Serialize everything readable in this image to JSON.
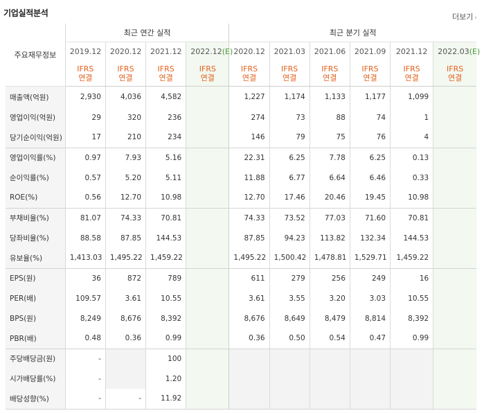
{
  "section_title": "기업실적분석",
  "more_link": "더보기",
  "table": {
    "corner_label": "주요재무정보",
    "group_annual": "최근 연간 실적",
    "group_quarter": "최근 분기 실적",
    "annual_periods": [
      "2019.12",
      "2020.12",
      "2021.12",
      "2022.12(E)"
    ],
    "quarter_periods": [
      "2020.12",
      "2021.03",
      "2021.06",
      "2021.09",
      "2021.12",
      "2022.03(E)"
    ],
    "basis_line1": "IFRS",
    "basis_line2": "연결",
    "rows": [
      {
        "label": "매출액(억원)",
        "values": [
          "2,930",
          "4,036",
          "4,582",
          "",
          "1,227",
          "1,174",
          "1,133",
          "1,177",
          "1,099",
          ""
        ]
      },
      {
        "label": "영업이익(억원)",
        "values": [
          "29",
          "320",
          "236",
          "",
          "274",
          "73",
          "88",
          "74",
          "1",
          ""
        ]
      },
      {
        "label": "당기순이익(억원)",
        "values": [
          "17",
          "210",
          "234",
          "",
          "146",
          "79",
          "75",
          "76",
          "4",
          ""
        ]
      },
      {
        "label": "영업이익률(%)",
        "values": [
          "0.97",
          "7.93",
          "5.16",
          "",
          "22.31",
          "6.25",
          "7.78",
          "6.25",
          "0.13",
          ""
        ]
      },
      {
        "label": "순이익률(%)",
        "values": [
          "0.57",
          "5.20",
          "5.11",
          "",
          "11.88",
          "6.77",
          "6.64",
          "6.46",
          "0.33",
          ""
        ]
      },
      {
        "label": "ROE(%)",
        "values": [
          "0.56",
          "12.70",
          "10.98",
          "",
          "12.70",
          "17.46",
          "20.46",
          "19.45",
          "10.98",
          ""
        ]
      },
      {
        "label": "부채비율(%)",
        "values": [
          "81.07",
          "74.33",
          "70.81",
          "",
          "74.33",
          "73.52",
          "77.03",
          "71.60",
          "70.81",
          ""
        ]
      },
      {
        "label": "당좌비율(%)",
        "values": [
          "88.58",
          "87.85",
          "144.53",
          "",
          "87.85",
          "94.23",
          "113.82",
          "132.34",
          "144.53",
          ""
        ]
      },
      {
        "label": "유보율(%)",
        "values": [
          "1,413.03",
          "1,495.22",
          "1,459.22",
          "",
          "1,495.22",
          "1,500.42",
          "1,478.81",
          "1,529.71",
          "1,459.22",
          ""
        ]
      },
      {
        "label": "EPS(원)",
        "values": [
          "36",
          "872",
          "789",
          "",
          "611",
          "279",
          "256",
          "249",
          "16",
          ""
        ]
      },
      {
        "label": "PER(배)",
        "values": [
          "109.57",
          "3.61",
          "10.55",
          "",
          "3.61",
          "3.55",
          "3.20",
          "3.03",
          "10.55",
          ""
        ]
      },
      {
        "label": "BPS(원)",
        "values": [
          "8,249",
          "8,676",
          "8,392",
          "",
          "8,676",
          "8,649",
          "8,479",
          "8,814",
          "8,392",
          ""
        ]
      },
      {
        "label": "PBR(배)",
        "values": [
          "0.48",
          "0.36",
          "0.99",
          "",
          "0.36",
          "0.50",
          "0.54",
          "0.47",
          "0.99",
          ""
        ]
      },
      {
        "label": "주당배당금(원)",
        "values": [
          "-",
          "",
          "100",
          "",
          "",
          "",
          "",
          "",
          "",
          ""
        ]
      },
      {
        "label": "시가배당률(%)",
        "values": [
          "-",
          "",
          "1.20",
          "",
          "",
          "",
          "",
          "",
          "",
          ""
        ]
      },
      {
        "label": "배당성향(%)",
        "values": [
          "-",
          "-",
          "11.92",
          "",
          "",
          "",
          "",
          "",
          "",
          ""
        ]
      }
    ]
  }
}
